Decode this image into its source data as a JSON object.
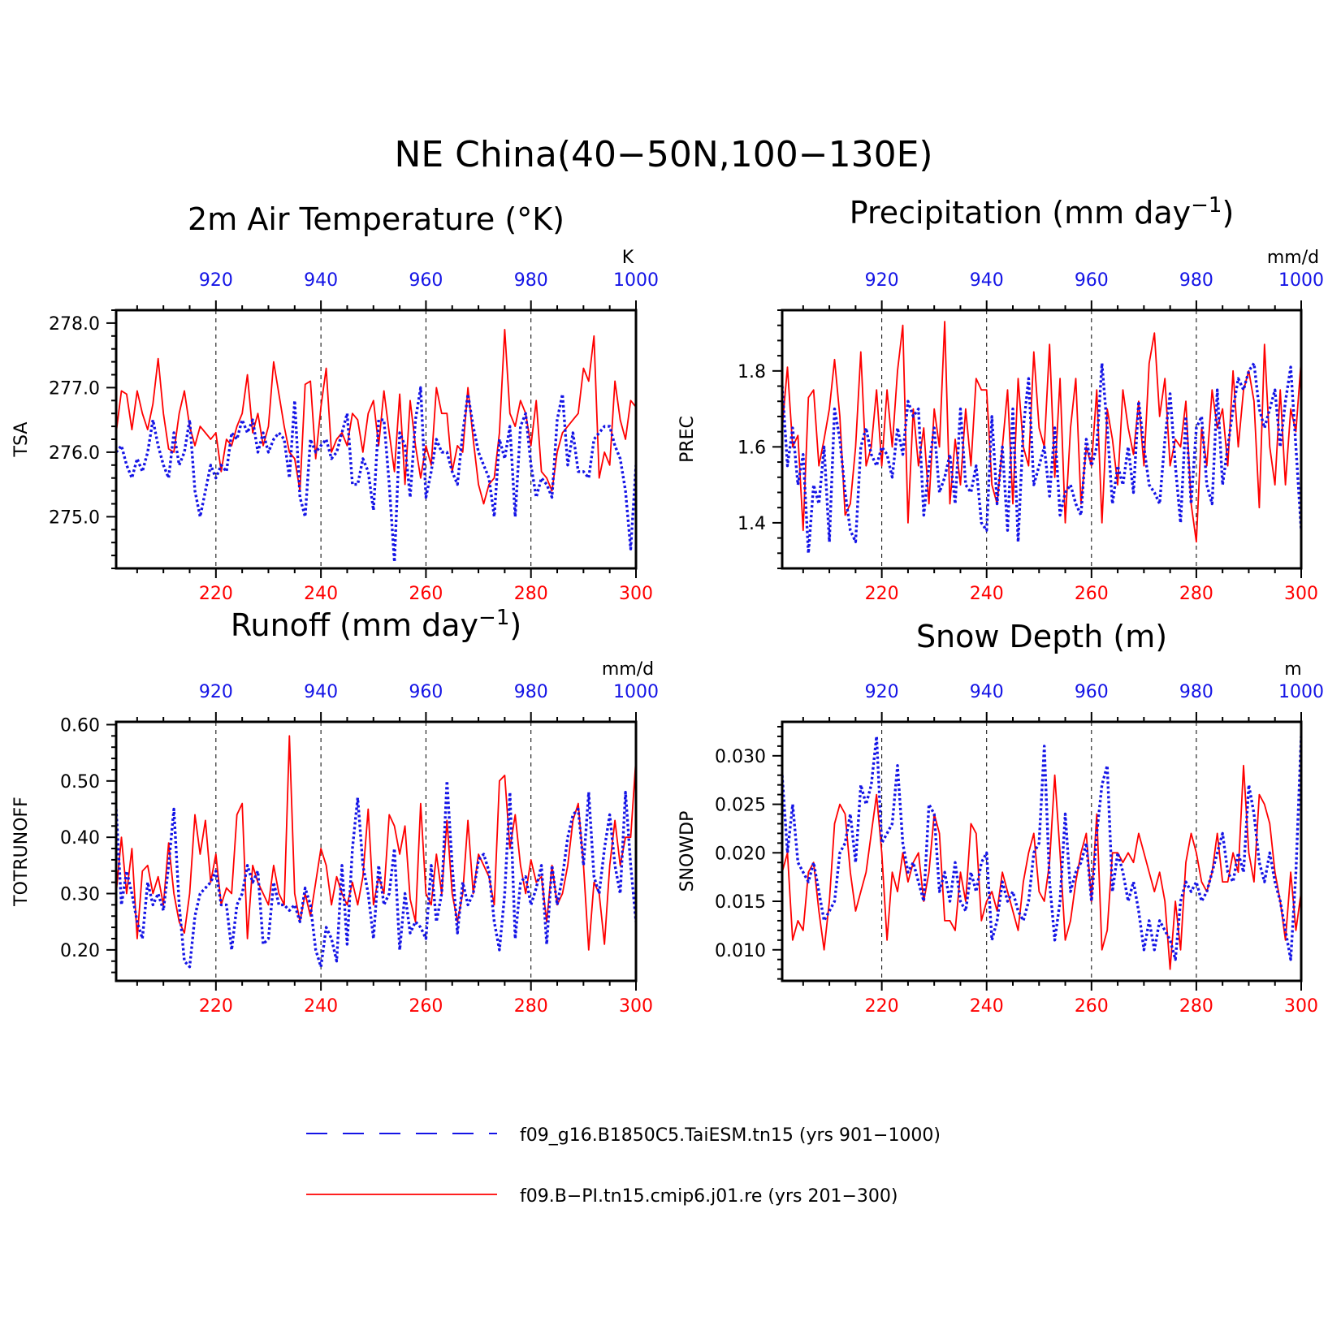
{
  "figure_title": "NE China(40−50N,100−130E)",
  "colors": {
    "model_a": "#1414e6",
    "model_b": "#ff0000",
    "axis": "#000000"
  },
  "legend": [
    {
      "label": "f09_g16.B1850C5.TaiESM.tn15 (yrs 901−1000)",
      "style": "dashed",
      "color": "#1414e6"
    },
    {
      "label": "f09.B−PI.tn15.cmip6.j01.re (yrs 201−300)",
      "style": "solid",
      "color": "#ff0000"
    }
  ],
  "chart_data": [
    {
      "type": "line",
      "title": "2m Air Temperature (°K)",
      "ylabel": "TSA",
      "units": "K",
      "xlim_bottom": [
        201,
        300
      ],
      "xticks_bottom": [
        "220",
        "240",
        "260",
        "280",
        "300"
      ],
      "xlim_top": [
        901,
        1000
      ],
      "xticks_top": [
        "920",
        "940",
        "960",
        "980",
        "1000"
      ],
      "ylim": [
        274.2,
        278.2
      ],
      "yticks": [
        "275.0",
        "276.0",
        "277.0",
        "278.0"
      ],
      "series": [
        {
          "name": "f09.B−PI.tn15.cmip6.j01.re (yrs 201−300)",
          "values": [
            276.3,
            276.95,
            276.9,
            276.35,
            276.95,
            276.6,
            276.35,
            276.75,
            277.45,
            276.6,
            276.05,
            276.0,
            276.6,
            276.95,
            276.4,
            276.1,
            276.4,
            276.3,
            276.2,
            276.3,
            275.7,
            276.2,
            276.1,
            276.4,
            276.6,
            277.2,
            276.3,
            276.6,
            276.1,
            276.4,
            277.4,
            276.9,
            276.4,
            276.0,
            275.9,
            275.4,
            277.05,
            277.1,
            275.9,
            276.7,
            277.3,
            276.0,
            276.2,
            276.3,
            276.1,
            276.6,
            276.5,
            276.0,
            276.6,
            276.8,
            276.1,
            276.95,
            276.3,
            275.7,
            276.9,
            275.5,
            276.8,
            276.1,
            275.6,
            276.1,
            275.8,
            277.0,
            276.6,
            276.6,
            275.7,
            276.1,
            276.0,
            277.0,
            276.2,
            275.5,
            275.2,
            275.5,
            275.6,
            276.3,
            277.9,
            276.6,
            276.4,
            276.8,
            276.6,
            276.1,
            276.8,
            275.7,
            275.6,
            275.4,
            276.0,
            276.3,
            276.4,
            276.5,
            276.6,
            277.3,
            277.1,
            277.8,
            275.6,
            276.0,
            275.8,
            277.1,
            276.5,
            276.2,
            276.8,
            276.7
          ]
        },
        {
          "name": "f09_g16.B1850C5.TaiESM.tn15 (yrs 901−1000)",
          "values": [
            276.0,
            276.1,
            275.8,
            275.6,
            275.9,
            275.7,
            276.0,
            276.5,
            276.1,
            275.8,
            275.6,
            276.3,
            275.8,
            276.0,
            276.5,
            275.4,
            275.0,
            275.4,
            275.8,
            275.6,
            275.8,
            275.7,
            276.3,
            276.2,
            276.5,
            276.3,
            276.5,
            276.0,
            276.3,
            276.0,
            276.2,
            276.3,
            276.2,
            275.6,
            276.8,
            275.3,
            275.0,
            276.2,
            276.0,
            276.1,
            276.2,
            275.9,
            276.0,
            276.3,
            276.6,
            275.5,
            275.5,
            275.9,
            275.7,
            275.1,
            276.5,
            276.5,
            275.5,
            274.3,
            276.3,
            276.1,
            275.3,
            276.5,
            277.0,
            275.3,
            275.7,
            276.2,
            276.0,
            276.0,
            275.7,
            275.5,
            276.3,
            276.9,
            276.4,
            276.0,
            275.8,
            275.6,
            275.0,
            276.2,
            275.9,
            276.4,
            275.0,
            276.4,
            276.6,
            275.8,
            275.3,
            275.6,
            275.5,
            275.3,
            276.5,
            276.9,
            275.8,
            276.3,
            275.7,
            275.7,
            275.6,
            276.2,
            276.3,
            276.4,
            276.4,
            276.1,
            275.9,
            275.4,
            274.5,
            275.8
          ]
        }
      ]
    },
    {
      "type": "line",
      "title": "Precipitation (mm day",
      "title_exp": "−1",
      "title_close": ")",
      "ylabel": "PREC",
      "units": "mm/d",
      "xlim_bottom": [
        201,
        300
      ],
      "xticks_bottom": [
        "220",
        "240",
        "260",
        "280",
        "300"
      ],
      "xlim_top": [
        901,
        1000
      ],
      "xticks_top": [
        "920",
        "940",
        "960",
        "980",
        "1000"
      ],
      "ylim": [
        1.28,
        1.96
      ],
      "yticks": [
        "1.4",
        "1.6",
        "1.8"
      ],
      "series": [
        {
          "name": "f09.B−PI.tn15.cmip6.j01.re (yrs 201−300)",
          "values": [
            1.65,
            1.81,
            1.6,
            1.63,
            1.38,
            1.73,
            1.75,
            1.55,
            1.62,
            1.7,
            1.83,
            1.68,
            1.42,
            1.45,
            1.6,
            1.85,
            1.55,
            1.6,
            1.75,
            1.55,
            1.75,
            1.6,
            1.8,
            1.92,
            1.4,
            1.7,
            1.55,
            1.65,
            1.45,
            1.7,
            1.6,
            1.93,
            1.45,
            1.62,
            1.5,
            1.7,
            1.55,
            1.78,
            1.75,
            1.75,
            1.5,
            1.45,
            1.6,
            1.75,
            1.45,
            1.78,
            1.6,
            1.55,
            1.85,
            1.65,
            1.6,
            1.87,
            1.52,
            1.78,
            1.4,
            1.65,
            1.78,
            1.45,
            1.6,
            1.55,
            1.75,
            1.4,
            1.7,
            1.62,
            1.5,
            1.75,
            1.65,
            1.58,
            1.72,
            1.55,
            1.82,
            1.9,
            1.68,
            1.78,
            1.55,
            1.62,
            1.6,
            1.72,
            1.45,
            1.35,
            1.65,
            1.55,
            1.75,
            1.65,
            1.7,
            1.55,
            1.8,
            1.6,
            1.75,
            1.8,
            1.72,
            1.44,
            1.87,
            1.6,
            1.5,
            1.75,
            1.5,
            1.7,
            1.64,
            1.83
          ]
        },
        {
          "name": "f09_g16.B1850C5.TaiESM.tn15 (yrs 901−1000)",
          "values": [
            1.76,
            1.55,
            1.65,
            1.5,
            1.58,
            1.32,
            1.5,
            1.45,
            1.6,
            1.35,
            1.7,
            1.62,
            1.48,
            1.38,
            1.35,
            1.6,
            1.65,
            1.58,
            1.55,
            1.6,
            1.58,
            1.52,
            1.65,
            1.58,
            1.72,
            1.68,
            1.7,
            1.42,
            1.55,
            1.65,
            1.48,
            1.52,
            1.58,
            1.45,
            1.7,
            1.5,
            1.48,
            1.55,
            1.4,
            1.38,
            1.68,
            1.45,
            1.6,
            1.38,
            1.7,
            1.35,
            1.65,
            1.78,
            1.5,
            1.55,
            1.6,
            1.47,
            1.65,
            1.42,
            1.48,
            1.5,
            1.45,
            1.42,
            1.62,
            1.55,
            1.6,
            1.82,
            1.65,
            1.45,
            1.55,
            1.5,
            1.6,
            1.48,
            1.72,
            1.6,
            1.5,
            1.48,
            1.45,
            1.62,
            1.74,
            1.55,
            1.4,
            1.68,
            1.45,
            1.65,
            1.68,
            1.5,
            1.45,
            1.75,
            1.5,
            1.6,
            1.7,
            1.78,
            1.75,
            1.8,
            1.82,
            1.7,
            1.65,
            1.7,
            1.75,
            1.6,
            1.72,
            1.81,
            1.6,
            1.38
          ]
        }
      ]
    },
    {
      "type": "line",
      "title": "Runoff (mm day",
      "title_exp": "−1",
      "title_close": ")",
      "ylabel": "TOTRUNOFF",
      "units": "mm/d",
      "xlim_bottom": [
        201,
        300
      ],
      "xticks_bottom": [
        "220",
        "240",
        "260",
        "280",
        "300"
      ],
      "xlim_top": [
        901,
        1000
      ],
      "xticks_top": [
        "920",
        "940",
        "960",
        "980",
        "1000"
      ],
      "ylim": [
        0.145,
        0.605
      ],
      "yticks": [
        "0.20",
        "0.30",
        "0.40",
        "0.50",
        "0.60"
      ],
      "series": [
        {
          "name": "f09.B−PI.tn15.cmip6.j01.re (yrs 201−300)",
          "values": [
            0.3,
            0.4,
            0.3,
            0.38,
            0.22,
            0.34,
            0.35,
            0.3,
            0.33,
            0.28,
            0.39,
            0.3,
            0.25,
            0.23,
            0.3,
            0.44,
            0.37,
            0.43,
            0.32,
            0.37,
            0.28,
            0.31,
            0.3,
            0.44,
            0.46,
            0.22,
            0.35,
            0.32,
            0.3,
            0.28,
            0.35,
            0.3,
            0.28,
            0.58,
            0.3,
            0.25,
            0.3,
            0.26,
            0.32,
            0.38,
            0.35,
            0.28,
            0.33,
            0.3,
            0.28,
            0.32,
            0.28,
            0.33,
            0.45,
            0.28,
            0.33,
            0.3,
            0.44,
            0.42,
            0.37,
            0.42,
            0.29,
            0.25,
            0.46,
            0.3,
            0.28,
            0.37,
            0.3,
            0.43,
            0.3,
            0.25,
            0.3,
            0.43,
            0.3,
            0.37,
            0.35,
            0.33,
            0.28,
            0.5,
            0.51,
            0.38,
            0.44,
            0.35,
            0.3,
            0.36,
            0.32,
            0.33,
            0.25,
            0.35,
            0.28,
            0.3,
            0.35,
            0.43,
            0.46,
            0.35,
            0.2,
            0.32,
            0.3,
            0.21,
            0.35,
            0.43,
            0.35,
            0.4,
            0.4,
            0.54
          ]
        },
        {
          "name": "f09_g16.B1850C5.TaiESM.tn15 (yrs 901−1000)",
          "values": [
            0.45,
            0.28,
            0.34,
            0.3,
            0.25,
            0.22,
            0.32,
            0.28,
            0.3,
            0.27,
            0.35,
            0.45,
            0.28,
            0.18,
            0.17,
            0.26,
            0.3,
            0.31,
            0.32,
            0.34,
            0.28,
            0.28,
            0.2,
            0.28,
            0.3,
            0.35,
            0.32,
            0.34,
            0.21,
            0.22,
            0.32,
            0.28,
            0.28,
            0.27,
            0.28,
            0.25,
            0.31,
            0.28,
            0.2,
            0.17,
            0.24,
            0.22,
            0.18,
            0.35,
            0.21,
            0.38,
            0.47,
            0.35,
            0.3,
            0.22,
            0.35,
            0.28,
            0.3,
            0.38,
            0.2,
            0.3,
            0.23,
            0.25,
            0.24,
            0.22,
            0.35,
            0.25,
            0.3,
            0.5,
            0.35,
            0.23,
            0.32,
            0.28,
            0.3,
            0.36,
            0.37,
            0.34,
            0.25,
            0.2,
            0.3,
            0.48,
            0.22,
            0.32,
            0.33,
            0.28,
            0.31,
            0.35,
            0.21,
            0.35,
            0.28,
            0.33,
            0.4,
            0.44,
            0.45,
            0.35,
            0.48,
            0.33,
            0.3,
            0.38,
            0.44,
            0.35,
            0.3,
            0.48,
            0.35,
            0.25
          ]
        }
      ]
    },
    {
      "type": "line",
      "title": "Snow Depth (m)",
      "ylabel": "SNOWDP",
      "units": "m",
      "xlim_bottom": [
        201,
        300
      ],
      "xticks_bottom": [
        "220",
        "240",
        "260",
        "280",
        "300"
      ],
      "xlim_top": [
        901,
        1000
      ],
      "xticks_top": [
        "920",
        "940",
        "960",
        "980",
        "1000"
      ],
      "ylim": [
        0.0068,
        0.0335
      ],
      "yticks": [
        "0.010",
        "0.015",
        "0.020",
        "0.025",
        "0.030"
      ],
      "series": [
        {
          "name": "f09.B−PI.tn15.cmip6.j01.re (yrs 201−300)",
          "values": [
            0.018,
            0.02,
            0.011,
            0.013,
            0.012,
            0.018,
            0.019,
            0.014,
            0.01,
            0.015,
            0.023,
            0.025,
            0.024,
            0.018,
            0.014,
            0.016,
            0.018,
            0.022,
            0.026,
            0.02,
            0.011,
            0.018,
            0.016,
            0.02,
            0.017,
            0.019,
            0.02,
            0.015,
            0.018,
            0.024,
            0.022,
            0.013,
            0.013,
            0.012,
            0.018,
            0.015,
            0.023,
            0.022,
            0.013,
            0.015,
            0.016,
            0.014,
            0.018,
            0.016,
            0.014,
            0.012,
            0.017,
            0.02,
            0.022,
            0.016,
            0.015,
            0.019,
            0.028,
            0.02,
            0.011,
            0.013,
            0.017,
            0.02,
            0.022,
            0.015,
            0.024,
            0.01,
            0.012,
            0.02,
            0.02,
            0.019,
            0.02,
            0.019,
            0.022,
            0.02,
            0.018,
            0.016,
            0.018,
            0.015,
            0.008,
            0.015,
            0.01,
            0.019,
            0.022,
            0.02,
            0.017,
            0.016,
            0.018,
            0.022,
            0.017,
            0.017,
            0.02,
            0.018,
            0.029,
            0.02,
            0.017,
            0.026,
            0.025,
            0.023,
            0.018,
            0.015,
            0.011,
            0.018,
            0.012,
            0.016
          ]
        },
        {
          "name": "f09_g16.B1850C5.TaiESM.tn15 (yrs 901−1000)",
          "values": [
            0.028,
            0.02,
            0.025,
            0.019,
            0.018,
            0.017,
            0.019,
            0.016,
            0.013,
            0.014,
            0.015,
            0.02,
            0.021,
            0.024,
            0.019,
            0.027,
            0.025,
            0.027,
            0.032,
            0.021,
            0.022,
            0.023,
            0.029,
            0.021,
            0.018,
            0.019,
            0.017,
            0.015,
            0.025,
            0.024,
            0.016,
            0.018,
            0.015,
            0.019,
            0.015,
            0.014,
            0.018,
            0.016,
            0.019,
            0.02,
            0.011,
            0.013,
            0.017,
            0.015,
            0.016,
            0.014,
            0.013,
            0.015,
            0.02,
            0.021,
            0.031,
            0.017,
            0.011,
            0.015,
            0.024,
            0.016,
            0.018,
            0.019,
            0.021,
            0.015,
            0.022,
            0.027,
            0.029,
            0.016,
            0.02,
            0.018,
            0.015,
            0.017,
            0.014,
            0.01,
            0.013,
            0.01,
            0.013,
            0.012,
            0.011,
            0.009,
            0.015,
            0.017,
            0.016,
            0.017,
            0.015,
            0.016,
            0.018,
            0.02,
            0.022,
            0.018,
            0.017,
            0.02,
            0.018,
            0.027,
            0.024,
            0.019,
            0.017,
            0.02,
            0.017,
            0.015,
            0.012,
            0.009,
            0.018,
            0.032
          ]
        }
      ]
    }
  ]
}
